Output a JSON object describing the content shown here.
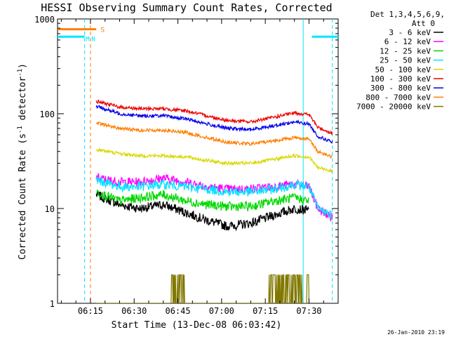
{
  "chart_data": {
    "type": "line",
    "title": "HESSI Observing Summary Count Rates, Corrected",
    "xlabel": "Start Time (13-Dec-08 06:03:42)",
    "ylabel_main": "Corrected Count Rate (s",
    "ylabel_sup1": "-1",
    "ylabel_mid": " detector",
    "ylabel_sup2": "-1",
    "ylabel_end": ")",
    "y_scale": "log",
    "ylim": [
      1,
      1000
    ],
    "xlim": [
      "06:03:42",
      "07:40:00"
    ],
    "x_ticks": [
      "06:15",
      "06:30",
      "06:45",
      "07:00",
      "07:15",
      "07:30"
    ],
    "y_ticks": [
      "1",
      "10",
      "100",
      "1000"
    ],
    "legend_header": [
      "Det 1,3,4,5,6,9,",
      "Att 0"
    ],
    "legend_position": "top-right, outside plot",
    "series": [
      {
        "name": "3 - 6 keV",
        "color": "#000000",
        "x": [
          "06:17",
          "06:25",
          "06:32",
          "06:40",
          "06:48",
          "06:55",
          "07:02",
          "07:10",
          "07:18",
          "07:25",
          "07:30"
        ],
        "y": [
          14,
          11,
          10,
          11,
          9,
          7.5,
          6.5,
          7,
          8.5,
          10,
          9.5
        ]
      },
      {
        "name": "6 - 12 keV",
        "color": "#ff00ff",
        "x": [
          "06:17",
          "06:25",
          "06:32",
          "06:40",
          "06:48",
          "06:55",
          "07:02",
          "07:10",
          "07:18",
          "07:25",
          "07:30",
          "07:33",
          "07:38"
        ],
        "y": [
          21,
          19,
          19,
          21,
          19,
          17,
          16,
          16,
          17,
          18,
          17,
          10,
          8
        ]
      },
      {
        "name": "12 - 25 keV",
        "color": "#00d800",
        "x": [
          "06:17",
          "06:25",
          "06:32",
          "06:40",
          "06:48",
          "06:55",
          "07:02",
          "07:10",
          "07:18",
          "07:25",
          "07:30"
        ],
        "y": [
          15,
          12,
          13,
          14,
          12,
          11,
          10.5,
          10.5,
          12,
          13,
          12
        ]
      },
      {
        "name": "25 - 50 keV",
        "color": "#00e5ff",
        "x": [
          "06:17",
          "06:25",
          "06:32",
          "06:40",
          "06:48",
          "06:55",
          "07:02",
          "07:10",
          "07:18",
          "07:25",
          "07:30",
          "07:33",
          "07:38"
        ],
        "y": [
          20,
          17,
          17,
          18,
          17,
          16,
          15,
          15,
          16,
          18,
          17,
          10,
          8.5
        ]
      },
      {
        "name": "50 - 100 keV",
        "color": "#d8d800",
        "x": [
          "06:17",
          "06:25",
          "06:32",
          "06:40",
          "06:48",
          "06:55",
          "07:02",
          "07:10",
          "07:18",
          "07:25",
          "07:30",
          "07:33",
          "07:38"
        ],
        "y": [
          42,
          38,
          36,
          36,
          35,
          32,
          30,
          30,
          33,
          36,
          35,
          27,
          25
        ]
      },
      {
        "name": "100 - 300 keV",
        "color": "#ee0000",
        "x": [
          "06:17",
          "06:25",
          "06:32",
          "06:40",
          "06:48",
          "06:55",
          "07:02",
          "07:10",
          "07:18",
          "07:25",
          "07:30",
          "07:33",
          "07:38"
        ],
        "y": [
          135,
          118,
          113,
          113,
          107,
          95,
          85,
          82,
          92,
          102,
          98,
          72,
          62
        ]
      },
      {
        "name": "300 - 800 keV",
        "color": "#0000ee",
        "x": [
          "06:17",
          "06:25",
          "06:32",
          "06:40",
          "06:48",
          "06:55",
          "07:02",
          "07:10",
          "07:18",
          "07:25",
          "07:30",
          "07:33",
          "07:38"
        ],
        "y": [
          120,
          100,
          95,
          95,
          88,
          78,
          70,
          68,
          75,
          82,
          78,
          58,
          50
        ]
      },
      {
        "name": "800 - 7000 keV",
        "color": "#ff7f00",
        "x": [
          "06:17",
          "06:25",
          "06:32",
          "06:40",
          "06:48",
          "06:55",
          "07:02",
          "07:10",
          "07:18",
          "07:25",
          "07:30",
          "07:33",
          "07:38"
        ],
        "y": [
          80,
          70,
          67,
          67,
          63,
          56,
          50,
          48,
          52,
          56,
          54,
          40,
          35
        ]
      },
      {
        "name": "7000 - 20000 keV",
        "color": "#807800",
        "x": [
          "06:17",
          "06:40",
          "06:45",
          "06:50",
          "07:06",
          "07:12",
          "07:20",
          "07:26",
          "07:30"
        ],
        "y": [
          1,
          1,
          2,
          1,
          1,
          1,
          2,
          2,
          2
        ]
      }
    ],
    "flag_bars": [
      {
        "label": "S",
        "color": "#ff7f00",
        "x": [
          "06:03:42",
          "06:17"
        ],
        "y": 780
      },
      {
        "label": "",
        "color": "#00e5ff",
        "x": [
          "06:03:42",
          "06:13"
        ],
        "y": 650
      },
      {
        "label": "",
        "color": "#00e5ff",
        "x": [
          "07:31",
          "07:40:00"
        ],
        "y": 650
      }
    ],
    "flag_markers": [
      {
        "label": "N",
        "color": "#00e5ff",
        "x": "06:16",
        "y": 650
      },
      {
        "label": "M",
        "color": "#00e5ff",
        "x": "06:14",
        "y": 650
      }
    ],
    "vertical_lines": [
      {
        "x": "06:13",
        "color": "#00e5ff",
        "style": "dashed"
      },
      {
        "x": "06:15",
        "color": "#ff7f00",
        "style": "dashed"
      },
      {
        "x": "07:28",
        "color": "#00e5ff",
        "style": "solid"
      },
      {
        "x": "07:38",
        "color": "#00e5ff",
        "style": "dashed"
      }
    ],
    "footer_timestamp": "26-Jan-2010 23:19"
  }
}
